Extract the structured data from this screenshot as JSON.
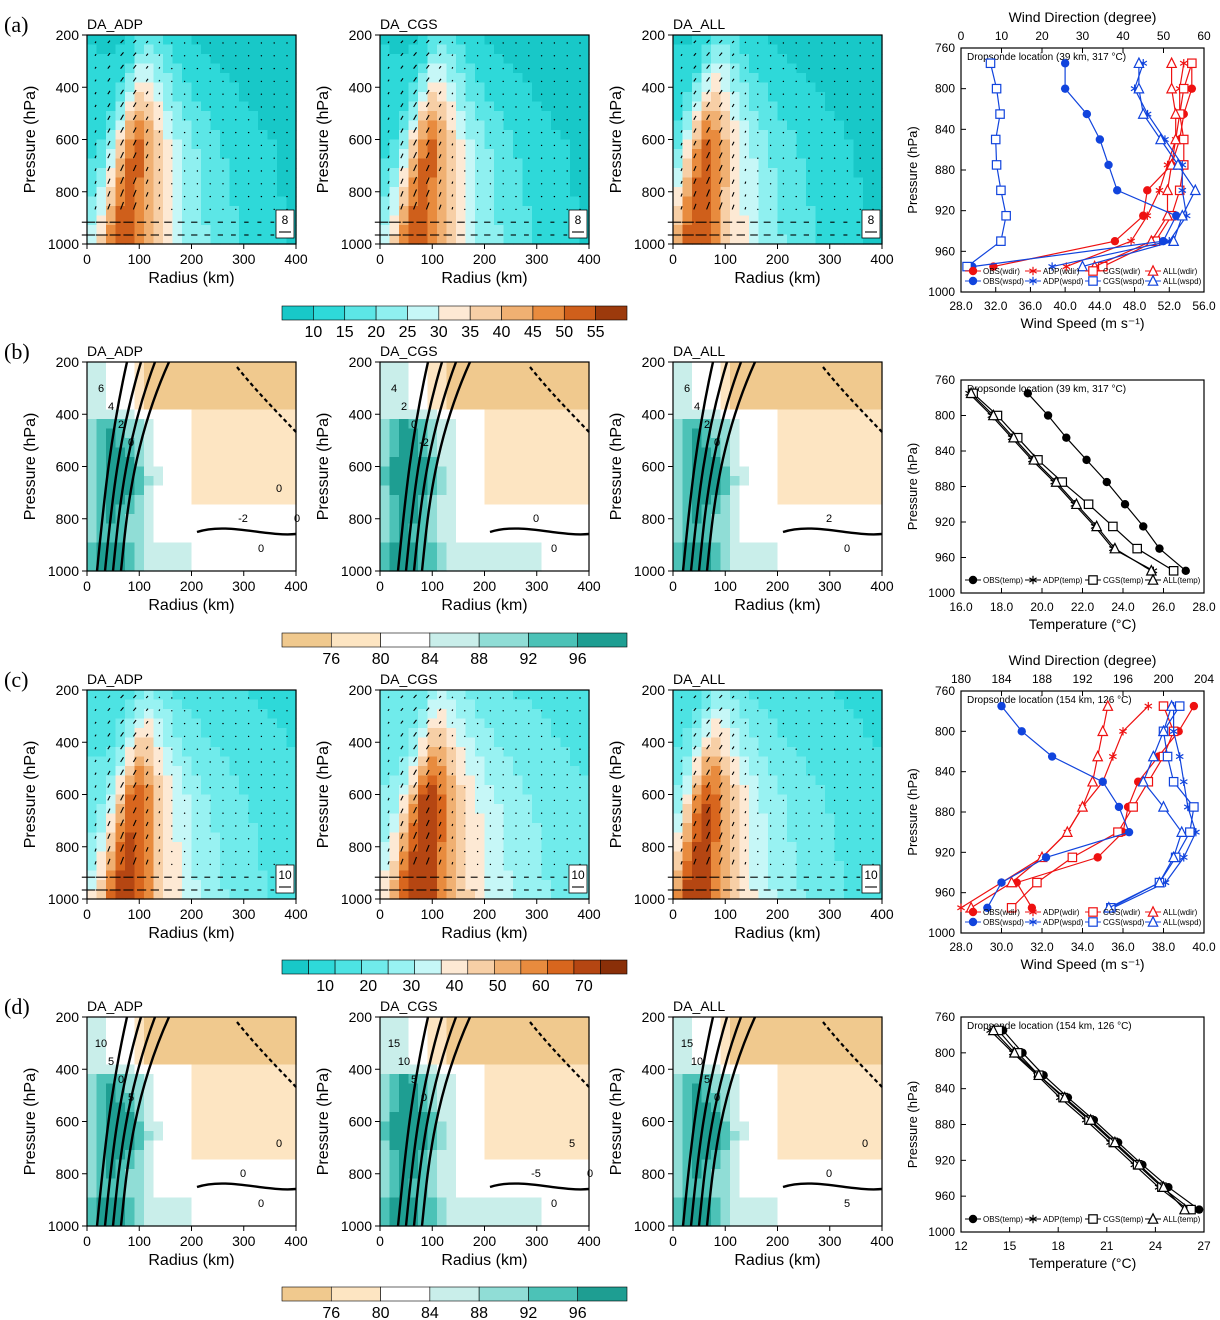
{
  "palettes": {
    "wind_a": [
      "#18c8c8",
      "#2ed9d9",
      "#5ce6e6",
      "#8ff0f0",
      "#c6f7f7",
      "#fde9d4",
      "#f7cfa6",
      "#f0b072",
      "#e88b3e",
      "#cf5f1b",
      "#9c3a0c"
    ],
    "wind_c": [
      "#18c8c8",
      "#2ed9d9",
      "#4de3e3",
      "#70ebeb",
      "#98f2f2",
      "#c6f7f7",
      "#fde9d4",
      "#f7cfa6",
      "#f0b072",
      "#e88b3e",
      "#d8661e",
      "#b54612",
      "#8a2f08"
    ],
    "rh": [
      "#f0c98e",
      "#fde5c2",
      "#ffffff",
      "#c9eeea",
      "#90ddd6",
      "#4cc2b7",
      "#1e9e92"
    ],
    "series_colors": {
      "dir": "#ee1111",
      "spd": "#1144dd",
      "temp": "#000000"
    }
  },
  "colorbars": [
    {
      "id": "cb1",
      "labels": [
        "10",
        "15",
        "20",
        "25",
        "30",
        "35",
        "40",
        "45",
        "50",
        "55"
      ]
    },
    {
      "id": "cb2",
      "labels": [
        "76",
        "80",
        "84",
        "88",
        "92",
        "96"
      ]
    },
    {
      "id": "cb3",
      "labels": [
        "10",
        "20",
        "30",
        "40",
        "50",
        "60",
        "70"
      ]
    },
    {
      "id": "cb4",
      "labels": [
        "76",
        "80",
        "84",
        "88",
        "92",
        "96"
      ]
    }
  ],
  "rows": [
    {
      "label": "(a)",
      "titles": [
        "DA_ADP",
        "DA_CGS",
        "DA_ALL"
      ],
      "ref_vector": "8"
    },
    {
      "label": "(b)",
      "titles": [
        "DA_ADP",
        "DA_CGS",
        "DA_ALL"
      ],
      "contours": [
        [
          "6",
          "4",
          "2",
          "0",
          "-2",
          "0",
          "0",
          "0"
        ],
        [
          "4",
          "2",
          "0",
          "-2",
          "0",
          "0"
        ],
        [
          "6",
          "4",
          "2",
          "0",
          "2",
          "0"
        ]
      ]
    },
    {
      "label": "(c)",
      "titles": [
        "DA_ADP",
        "DA_CGS",
        "DA_ALL"
      ],
      "ref_vector": "10"
    },
    {
      "label": "(d)",
      "titles": [
        "DA_ADP",
        "DA_CGS",
        "DA_ALL"
      ],
      "contours": [
        [
          "10",
          "5",
          "0",
          "5",
          "0",
          "0",
          "0"
        ],
        [
          "15",
          "10",
          "5",
          "0",
          "-5",
          "0",
          "5",
          "0"
        ],
        [
          "15",
          "10",
          "5",
          "0",
          "0",
          "5",
          "0"
        ]
      ]
    }
  ],
  "cross_section_axes": {
    "ylabel": "Pressure (hPa)",
    "xlabel": "Radius (km)",
    "yticks": [
      "200",
      "400",
      "600",
      "800",
      "1000"
    ],
    "xticks": [
      "0",
      "100",
      "200",
      "300",
      "400"
    ]
  },
  "chart_data": [
    {
      "type": "line",
      "panel": "a-right",
      "annotation": "Dropsonde location (39 km, 317 °C)",
      "ylabel": "Pressure (hPa)",
      "y_reversed": true,
      "ylim": [
        1000,
        760
      ],
      "yticks": [
        "760",
        "800",
        "840",
        "880",
        "920",
        "960",
        "1000"
      ],
      "top_axis": {
        "label": "Wind Direction (degree)",
        "lim": [
          0,
          60
        ],
        "ticks": [
          "0",
          "10",
          "20",
          "30",
          "40",
          "50",
          "60"
        ]
      },
      "bottom_axis": {
        "label": "Wind Speed (m s⁻¹)",
        "lim": [
          28,
          56
        ],
        "ticks": [
          "28.0",
          "32.0",
          "36.0",
          "40.0",
          "44.0",
          "48.0",
          "52.0",
          "56.0"
        ]
      },
      "p": [
        775,
        800,
        825,
        850,
        875,
        900,
        925,
        950,
        975
      ],
      "legend": [
        "OBS(wdir)",
        "ADP(wdir)",
        "CGS(wdir)",
        "ALL(wdir)",
        "OBS(wspd)",
        "ADP(wspd)",
        "CGS(wspd)",
        "ALL(wspd)"
      ],
      "series": [
        {
          "name": "OBS(wdir)",
          "axis": "top",
          "marker": "circle",
          "x": [
            57,
            57,
            55,
            54,
            52,
            46,
            45,
            38,
            8
          ]
        },
        {
          "name": "ADP(wdir)",
          "axis": "top",
          "marker": "star",
          "x": [
            55,
            54,
            54,
            53,
            51,
            49,
            46,
            42,
            26
          ]
        },
        {
          "name": "CGS(wdir)",
          "axis": "top",
          "marker": "square",
          "x": [
            57,
            55,
            54,
            55,
            55,
            54,
            52,
            48,
            35
          ]
        },
        {
          "name": "ALL(wdir)",
          "axis": "top",
          "marker": "triangle",
          "x": [
            52,
            52,
            53,
            53,
            52,
            51,
            51,
            47,
            33
          ]
        },
        {
          "name": "OBS(wspd)",
          "axis": "bottom",
          "marker": "circle",
          "x": [
            40.0,
            40.0,
            42.5,
            44.0,
            45.0,
            46.0,
            52.8,
            51.3,
            29.3
          ]
        },
        {
          "name": "ADP(wspd)",
          "axis": "bottom",
          "marker": "star",
          "x": [
            49.0,
            48.0,
            49.5,
            51.5,
            53.5,
            53.5,
            54.0,
            52.0,
            38.5
          ]
        },
        {
          "name": "CGS(wspd)",
          "axis": "bottom",
          "marker": "square",
          "x": [
            31.4,
            32.1,
            32.5,
            32.0,
            32.1,
            32.6,
            33.2,
            32.6,
            28.7
          ]
        },
        {
          "name": "ALL(wspd)",
          "axis": "bottom",
          "marker": "triangle",
          "x": [
            48.5,
            48.5,
            49.0,
            51.0,
            53.0,
            55.0,
            53.5,
            52.5,
            42.0
          ]
        }
      ]
    },
    {
      "type": "line",
      "panel": "b-right",
      "annotation": "Dropsonde location (39 km, 317 °C)",
      "ylabel": "Pressure (hPa)",
      "xlabel": "Temperature (°C)",
      "y_reversed": true,
      "ylim": [
        1000,
        760
      ],
      "xlim": [
        16,
        28
      ],
      "yticks": [
        "760",
        "800",
        "840",
        "880",
        "920",
        "960",
        "1000"
      ],
      "xticks": [
        "16.0",
        "18.0",
        "20.0",
        "22.0",
        "24.0",
        "26.0",
        "28.0"
      ],
      "p": [
        775,
        800,
        825,
        850,
        875,
        900,
        925,
        950,
        975
      ],
      "legend": [
        "OBS(temp)",
        "ADP(temp)",
        "CGS(temp)",
        "ALL(temp)"
      ],
      "series": [
        {
          "name": "OBS(temp)",
          "marker": "circle",
          "x": [
            19.3,
            20.3,
            21.2,
            22.2,
            23.2,
            24.1,
            25.0,
            25.8,
            27.1
          ]
        },
        {
          "name": "ADP(temp)",
          "marker": "star",
          "x": [
            16.4,
            17.5,
            18.5,
            19.5,
            20.6,
            21.6,
            22.6,
            23.5,
            25.5
          ]
        },
        {
          "name": "CGS(temp)",
          "marker": "square",
          "x": [
            16.6,
            17.8,
            18.8,
            19.8,
            21.0,
            22.3,
            23.5,
            24.7,
            26.5
          ]
        },
        {
          "name": "ALL(temp)",
          "marker": "triangle",
          "x": [
            16.5,
            17.6,
            18.6,
            19.6,
            20.7,
            21.7,
            22.7,
            23.6,
            25.4
          ]
        }
      ]
    },
    {
      "type": "line",
      "panel": "c-right",
      "annotation": "Dropsonde location (154 km, 126 °C)",
      "ylabel": "Pressure (hPa)",
      "y_reversed": true,
      "ylim": [
        1000,
        760
      ],
      "yticks": [
        "760",
        "800",
        "840",
        "880",
        "920",
        "960",
        "1000"
      ],
      "top_axis": {
        "label": "Wind Direction (degree)",
        "lim": [
          180,
          204
        ],
        "ticks": [
          "180",
          "184",
          "188",
          "192",
          "196",
          "200",
          "204"
        ]
      },
      "bottom_axis": {
        "label": "Wind Speed (m s⁻¹)",
        "lim": [
          28,
          40
        ],
        "ticks": [
          "28.0",
          "30.0",
          "32.0",
          "34.0",
          "36.0",
          "38.0",
          "40.0"
        ]
      },
      "p": [
        775,
        800,
        825,
        850,
        875,
        900,
        925,
        950,
        975
      ],
      "legend": [
        "OBS(wdir)",
        "ADP(wdir)",
        "CGS(wdir)",
        "ALL(wdir)",
        "OBS(wspd)",
        "ADP(wspd)",
        "CGS(wspd)",
        "ALL(wspd)"
      ],
      "series": [
        {
          "name": "OBS(wdir)",
          "axis": "top",
          "marker": "circle",
          "x": [
            203,
            201.5,
            199.5,
            197.5,
            196.5,
            196,
            193.5,
            185.5,
            187
          ]
        },
        {
          "name": "ADP(wdir)",
          "axis": "top",
          "marker": "star",
          "x": [
            198.5,
            196,
            195,
            194,
            192,
            190.5,
            188,
            184,
            180
          ]
        },
        {
          "name": "CGS(wdir)",
          "axis": "top",
          "marker": "square",
          "x": [
            200,
            201,
            200,
            198.5,
            197,
            195.5,
            191,
            187.5,
            185
          ]
        },
        {
          "name": "ALL(wdir)",
          "axis": "top",
          "marker": "triangle",
          "x": [
            194.5,
            194,
            193.5,
            193,
            192,
            190.5,
            188,
            185,
            181
          ]
        },
        {
          "name": "OBS(wspd)",
          "axis": "bottom",
          "marker": "circle",
          "x": [
            30.0,
            31.0,
            32.5,
            35.0,
            35.8,
            36.3,
            32.2,
            30.0,
            29.3
          ]
        },
        {
          "name": "ADP(wspd)",
          "axis": "bottom",
          "marker": "star",
          "x": [
            38.5,
            38.5,
            38.8,
            39.0,
            39.2,
            39.6,
            39.0,
            38.1,
            35.5
          ]
        },
        {
          "name": "CGS(wspd)",
          "axis": "bottom",
          "marker": "square",
          "x": [
            38.8,
            38.0,
            38.2,
            38.5,
            39.5,
            39.3,
            38.6,
            37.8,
            35.4
          ]
        },
        {
          "name": "ALL(wspd)",
          "axis": "bottom",
          "marker": "triangle",
          "x": [
            38.4,
            38.0,
            37.5,
            37.0,
            38.0,
            38.9,
            38.5,
            37.8,
            35.3
          ]
        }
      ]
    },
    {
      "type": "line",
      "panel": "d-right",
      "annotation": "Dropsonde location (154 km, 126 °C)",
      "ylabel": "Pressure (hPa)",
      "xlabel": "Temperature (°C)",
      "y_reversed": true,
      "ylim": [
        1000,
        760
      ],
      "xlim": [
        12,
        27
      ],
      "yticks": [
        "760",
        "800",
        "840",
        "880",
        "920",
        "960",
        "1000"
      ],
      "xticks": [
        "12",
        "15",
        "18",
        "21",
        "24",
        "27"
      ],
      "p": [
        775,
        800,
        825,
        850,
        875,
        900,
        925,
        950,
        975
      ],
      "legend": [
        "OBS(temp)",
        "ADP(temp)",
        "CGS(temp)",
        "ALL(temp)"
      ],
      "series": [
        {
          "name": "OBS(temp)",
          "marker": "circle",
          "x": [
            14.6,
            15.8,
            17.1,
            18.6,
            20.2,
            21.7,
            23.2,
            24.8,
            26.7
          ]
        },
        {
          "name": "ADP(temp)",
          "marker": "star",
          "x": [
            13.8,
            15.2,
            16.7,
            18.1,
            19.7,
            21.2,
            22.7,
            24.2,
            26.0
          ]
        },
        {
          "name": "CGS(temp)",
          "marker": "square",
          "x": [
            14.3,
            15.5,
            16.8,
            18.3,
            19.9,
            21.4,
            22.9,
            24.4,
            26.2
          ]
        },
        {
          "name": "ALL(temp)",
          "marker": "triangle",
          "x": [
            14.0,
            15.3,
            16.8,
            18.4,
            20.0,
            21.5,
            23.0,
            24.5,
            25.8
          ]
        }
      ]
    }
  ]
}
